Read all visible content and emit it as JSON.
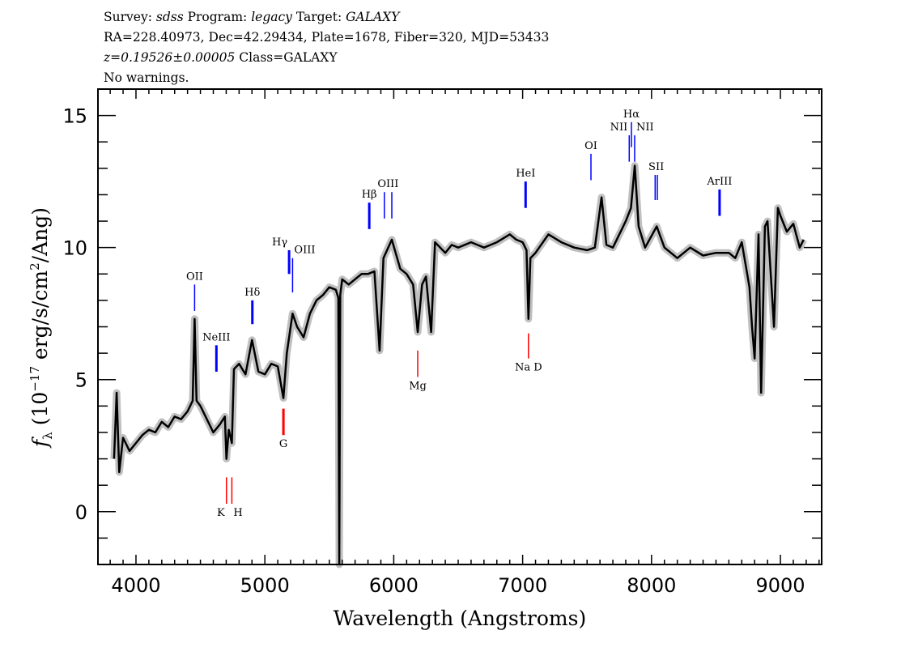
{
  "header": {
    "line1": {
      "survey_key": "Survey: ",
      "survey": "sdss",
      "program_key": " Program: ",
      "program": "legacy",
      "target_key": " Target: ",
      "target": "GALAXY"
    },
    "line2": "RA=228.40973, Dec=42.29434, Plate=1678, Fiber=320, MJD=53433",
    "line3": {
      "redshift": "z=0.19526±0.00005",
      "class": " Class=GALAXY"
    },
    "line4": "No warnings."
  },
  "chart_data": {
    "type": "line",
    "xlabel": "Wavelength (Angstroms)",
    "ylabel": "f_λ (10^-17 erg/s/cm^2/Ang)",
    "ylabel_parts": {
      "f": "f",
      "sub": "λ",
      "a": " (10",
      "exp1": "−17",
      "b": " erg/s/cm",
      "exp2": "2",
      "c": "/Ang)"
    },
    "xlim": [
      3705,
      9320
    ],
    "ylim": [
      -2,
      16
    ],
    "x_ticks": [
      "4000",
      "5000",
      "6000",
      "7000",
      "8000",
      "9000"
    ],
    "y_ticks": [
      "0",
      "5",
      "10",
      "15"
    ],
    "grid": false,
    "colors": {
      "flux": "#000000",
      "error": "#c0c0c0",
      "emission": "#0000ff",
      "absorption": "#ff0000"
    },
    "series": [
      {
        "x": [
          3830,
          3850,
          3870,
          3900,
          3950,
          4000,
          4050,
          4100,
          4150,
          4200,
          4250,
          4300,
          4350,
          4400,
          4440,
          4455,
          4470,
          4500,
          4550,
          4600,
          4650,
          4690,
          4702,
          4720,
          4744,
          4760,
          4800,
          4850,
          4900,
          4950,
          5000,
          5050,
          5100,
          5144,
          5170,
          5215,
          5250,
          5300,
          5350,
          5400,
          5450,
          5500,
          5550,
          5570,
          5577,
          5585,
          5600,
          5650,
          5700,
          5750,
          5800,
          5850,
          5890,
          5920,
          5985,
          6050,
          6100,
          6150,
          6186,
          6220,
          6250,
          6290,
          6320,
          6400,
          6450,
          6500,
          6600,
          6700,
          6800,
          6900,
          6950,
          7000,
          7030,
          7045,
          7060,
          7100,
          7200,
          7300,
          7400,
          7500,
          7560,
          7612,
          7650,
          7700,
          7800,
          7840,
          7870,
          7900,
          7950,
          8040,
          8100,
          8200,
          8300,
          8400,
          8500,
          8600,
          8650,
          8700,
          8760,
          8780,
          8800,
          8830,
          8850,
          8880,
          8900,
          8950,
          8980,
          9000,
          9050,
          9100,
          9150,
          9180
        ],
        "y": [
          2.0,
          4.5,
          1.5,
          2.8,
          2.3,
          2.6,
          2.9,
          3.1,
          3.0,
          3.4,
          3.2,
          3.6,
          3.5,
          3.8,
          4.2,
          7.3,
          4.2,
          4.0,
          3.5,
          3.0,
          3.3,
          3.6,
          2.0,
          3.1,
          2.6,
          5.4,
          5.6,
          5.2,
          6.5,
          5.3,
          5.2,
          5.6,
          5.5,
          4.3,
          6.0,
          7.5,
          7.0,
          6.6,
          7.5,
          8.0,
          8.2,
          8.5,
          8.4,
          8.1,
          -2.0,
          8.2,
          8.8,
          8.6,
          8.8,
          9.0,
          9.0,
          9.1,
          6.1,
          9.6,
          10.3,
          9.2,
          9.0,
          8.6,
          6.8,
          8.6,
          8.9,
          6.8,
          10.2,
          9.8,
          10.1,
          10.0,
          10.2,
          10.0,
          10.2,
          10.5,
          10.3,
          10.2,
          9.9,
          7.3,
          9.6,
          9.8,
          10.5,
          10.2,
          10.0,
          9.9,
          10.0,
          11.9,
          10.1,
          10.0,
          11.0,
          11.5,
          13.1,
          10.8,
          10.0,
          10.8,
          10.0,
          9.6,
          10.0,
          9.7,
          9.8,
          9.8,
          9.6,
          10.2,
          8.5,
          7.0,
          5.8,
          10.5,
          4.5,
          10.8,
          11.0,
          7.0,
          11.5,
          11.2,
          10.6,
          10.9,
          10.0,
          10.3
        ]
      }
    ],
    "emission_lines": [
      {
        "label": "OII",
        "wavelengths": [
          4455
        ],
        "range": [
          7.6,
          8.6
        ],
        "weight": "thin"
      },
      {
        "label": "NeIII",
        "wavelengths": [
          4624
        ],
        "range": [
          5.3,
          6.3
        ],
        "weight": "thick"
      },
      {
        "label": "Hδ",
        "wavelengths": [
          4903
        ],
        "range": [
          7.1,
          8.0
        ],
        "weight": "thick"
      },
      {
        "label": "Hγ",
        "wavelengths": [
          5188
        ],
        "range": [
          9.0,
          9.9
        ],
        "weight": "thick",
        "label_side": "left"
      },
      {
        "label": "OIII",
        "wavelengths": [
          5215
        ],
        "range": [
          8.3,
          9.6
        ],
        "weight": "thin",
        "label_side": "right"
      },
      {
        "label": "Hβ",
        "wavelengths": [
          5810
        ],
        "range": [
          10.7,
          11.7
        ],
        "weight": "thick"
      },
      {
        "label": "OIII",
        "wavelengths": [
          5927,
          5985
        ],
        "range": [
          11.1,
          12.1
        ],
        "weight": "thin"
      },
      {
        "label": "HeI",
        "wavelengths": [
          7023
        ],
        "range": [
          11.5,
          12.5
        ],
        "weight": "thick"
      },
      {
        "label": "OI",
        "wavelengths": [
          7530
        ],
        "range": [
          12.55,
          13.55
        ],
        "weight": "thin"
      },
      {
        "label": "NII",
        "wavelengths": [
          7827
        ],
        "range": [
          13.25,
          14.25
        ],
        "weight": "thin",
        "label_side": "left"
      },
      {
        "label": "Hα",
        "wavelengths": [
          7844
        ],
        "range": [
          13.8,
          14.75
        ],
        "weight": "thin"
      },
      {
        "label": "NII",
        "wavelengths": [
          7869
        ],
        "range": [
          13.25,
          14.25
        ],
        "weight": "thin",
        "label_side": "right"
      },
      {
        "label": "SII",
        "wavelengths": [
          8028,
          8045
        ],
        "range": [
          11.8,
          12.75
        ],
        "weight": "thin"
      },
      {
        "label": "ArIII",
        "wavelengths": [
          8528
        ],
        "range": [
          11.2,
          12.2
        ],
        "weight": "thick"
      }
    ],
    "absorption_lines": [
      {
        "label": "K",
        "wavelengths": [
          4702
        ],
        "range": [
          0.3,
          1.3
        ],
        "weight": "thin",
        "label_side": "left"
      },
      {
        "label": "H",
        "wavelengths": [
          4744
        ],
        "range": [
          0.3,
          1.3
        ],
        "weight": "thin",
        "label_side": "right"
      },
      {
        "label": "G",
        "wavelengths": [
          5144
        ],
        "range": [
          2.9,
          3.9
        ],
        "weight": "thick"
      },
      {
        "label": "Mg",
        "wavelengths": [
          6186
        ],
        "range": [
          5.1,
          6.1
        ],
        "weight": "thin"
      },
      {
        "label": "Na D",
        "wavelengths": [
          7045
        ],
        "range": [
          5.8,
          6.75
        ],
        "weight": "thin"
      }
    ]
  }
}
